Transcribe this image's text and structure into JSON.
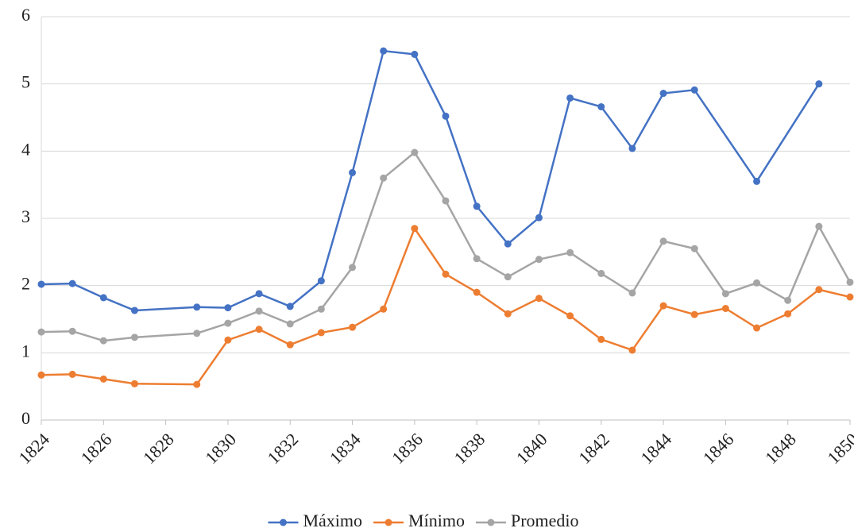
{
  "chart_data": {
    "type": "line",
    "xlim": [
      1824,
      1850
    ],
    "xticks": [
      1824,
      1826,
      1828,
      1830,
      1832,
      1834,
      1836,
      1838,
      1840,
      1842,
      1844,
      1846,
      1848,
      1850
    ],
    "ylim": [
      0,
      6
    ],
    "yticks": [
      0,
      1,
      2,
      3,
      4,
      5,
      6
    ],
    "grid": true,
    "legend": "bottom",
    "series": [
      {
        "name": "Máximo",
        "color": "#4472c4",
        "x": [
          1824,
          1825,
          1826,
          1827,
          1829,
          1830,
          1831,
          1832,
          1833,
          1834,
          1835,
          1836,
          1837,
          1838,
          1839,
          1840,
          1841,
          1842,
          1843,
          1844,
          1845,
          1847,
          1849
        ],
        "values": [
          2.02,
          2.03,
          1.82,
          1.63,
          1.68,
          1.67,
          1.88,
          1.69,
          2.07,
          3.68,
          5.49,
          5.44,
          4.52,
          3.18,
          2.62,
          3.01,
          4.79,
          4.66,
          4.04,
          4.86,
          4.91,
          3.55,
          5.0
        ]
      },
      {
        "name": "Mínimo",
        "color": "#ed7d31",
        "x": [
          1824,
          1825,
          1826,
          1827,
          1829,
          1830,
          1831,
          1832,
          1833,
          1834,
          1835,
          1836,
          1837,
          1838,
          1839,
          1840,
          1841,
          1842,
          1843,
          1844,
          1845,
          1846,
          1847,
          1848,
          1849,
          1850
        ],
        "values": [
          0.67,
          0.68,
          0.61,
          0.54,
          0.53,
          1.19,
          1.35,
          1.12,
          1.3,
          1.38,
          1.65,
          2.85,
          2.17,
          1.9,
          1.58,
          1.81,
          1.55,
          1.2,
          1.04,
          1.7,
          1.57,
          1.66,
          1.37,
          1.58,
          1.94,
          1.83
        ]
      },
      {
        "name": "Promedio",
        "color": "#a5a5a5",
        "x": [
          1824,
          1825,
          1826,
          1827,
          1829,
          1830,
          1831,
          1832,
          1833,
          1834,
          1835,
          1836,
          1837,
          1838,
          1839,
          1840,
          1841,
          1842,
          1843,
          1844,
          1845,
          1846,
          1847,
          1848,
          1849,
          1850
        ],
        "values": [
          1.31,
          1.32,
          1.18,
          1.23,
          1.29,
          1.44,
          1.62,
          1.43,
          1.65,
          2.27,
          3.6,
          3.98,
          3.26,
          2.4,
          2.13,
          2.39,
          2.49,
          2.18,
          1.89,
          2.66,
          2.55,
          1.88,
          2.04,
          1.78,
          2.88,
          2.05
        ]
      }
    ]
  }
}
